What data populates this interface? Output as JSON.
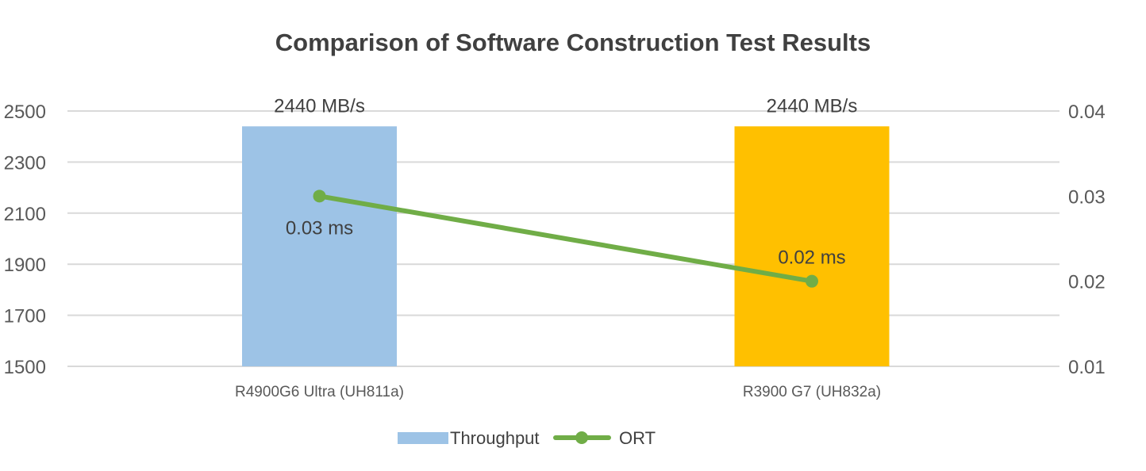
{
  "chart_data": {
    "type": "bar+line",
    "title": "Comparison of Software Construction Test Results",
    "categories": [
      "R4900G6 Ultra (UH811a)",
      "R3900 G7 (UH832a)"
    ],
    "series": [
      {
        "name": "Throughput",
        "type": "bar",
        "axis": "left",
        "values": [
          2440,
          2440
        ],
        "labels": [
          "2440 MB/s",
          "2440 MB/s"
        ],
        "colors": [
          "#9DC3E6",
          "#FFC000"
        ]
      },
      {
        "name": "ORT",
        "type": "line",
        "axis": "right",
        "values": [
          0.03,
          0.02
        ],
        "labels": [
          "0.03 ms",
          "0.02 ms"
        ],
        "color": "#70AD47"
      }
    ],
    "left_axis": {
      "range": [
        1500,
        2500
      ],
      "ticks": [
        "1500",
        "1700",
        "1900",
        "2100",
        "2300",
        "2500"
      ]
    },
    "right_axis": {
      "range": [
        0.01,
        0.04
      ],
      "ticks": [
        "0.01",
        "0.02",
        "0.03",
        "0.04"
      ]
    },
    "grid": true,
    "legend": {
      "position": "bottom",
      "items": [
        "Throughput",
        "ORT"
      ]
    }
  }
}
